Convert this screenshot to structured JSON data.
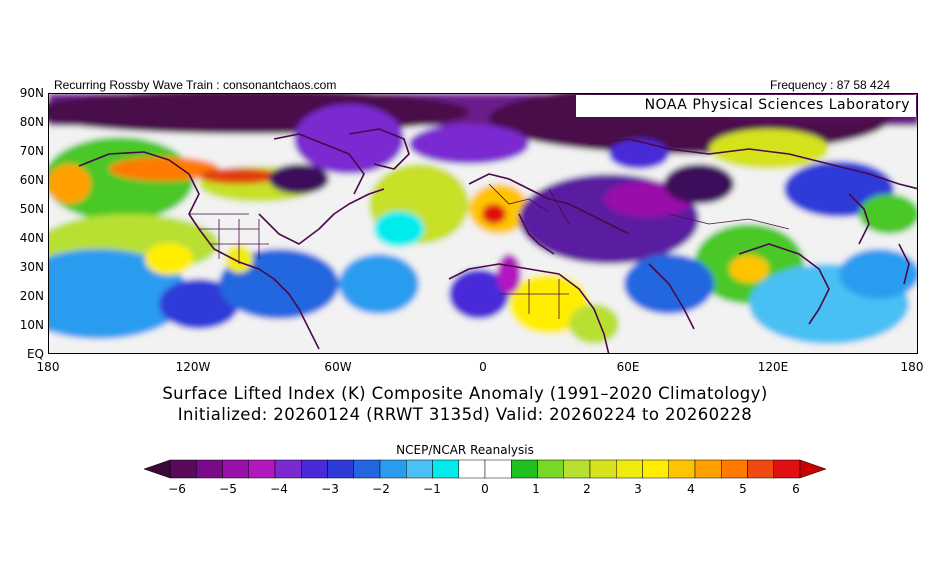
{
  "header": {
    "left_note": "Recurring Rossby Wave Train : consonantchaos.com",
    "right_note": "Frequency : 87 58 424",
    "lab_label": "NOAA Physical Sciences Laboratory"
  },
  "map": {
    "lat_labels": [
      "90N",
      "80N",
      "70N",
      "60N",
      "50N",
      "40N",
      "30N",
      "20N",
      "10N",
      "EQ"
    ],
    "lon_labels": [
      "180",
      "120W",
      "60W",
      "0",
      "60E",
      "120E",
      "180"
    ],
    "extent": {
      "lon_min": -180,
      "lon_max": 180,
      "lat_min": 0,
      "lat_max": 90
    }
  },
  "title": {
    "line1": "Surface Lifted Index (K) Composite Anomaly (1991–2020 Climatology)",
    "line2": "Initialized: 20260124 (RRWT 3135d) Valid: 20260224 to 20260228"
  },
  "colorbar": {
    "source": "NCEP/NCAR Reanalysis",
    "tick_labels": [
      "−6",
      "−5",
      "−4",
      "−3",
      "−2",
      "−1",
      "0",
      "1",
      "2",
      "3",
      "4",
      "5",
      "6"
    ],
    "colors": [
      "#3a0a3a",
      "#5a0a5a",
      "#7a0a8a",
      "#9a10aa",
      "#b218c0",
      "#7a2ad0",
      "#4a2ad8",
      "#2e3ad8",
      "#2466e0",
      "#2a9cf0",
      "#4ac0f4",
      "#00ecec",
      "#ffffff",
      "#ffffff",
      "#20c020",
      "#78d828",
      "#b8e030",
      "#d6e21e",
      "#f0ec10",
      "#ffee00",
      "#ffc400",
      "#ffa000",
      "#ff7a00",
      "#f04a10",
      "#e01010",
      "#c80000"
    ]
  }
}
